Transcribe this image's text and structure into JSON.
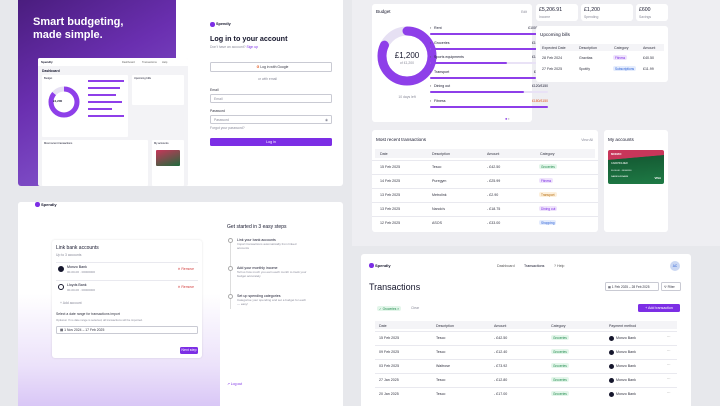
{
  "hero": {
    "line1": "Smart budgeting,",
    "line2": "made simple."
  },
  "brand": "Spendly",
  "login": {
    "title": "Log in to your account",
    "subtitle_prefix": "Don't have an account?",
    "signup": "Sign up",
    "google": "Log in with Google",
    "divider": "or with email",
    "email_label": "Email",
    "email_placeholder": "Email",
    "password_label": "Password",
    "password_placeholder": "Password",
    "forgot": "Forgot your password?",
    "submit": "Log in"
  },
  "mini_dash": {
    "tabs": [
      "Dashboard",
      "Transactions",
      "Help"
    ],
    "title": "Dashboard",
    "budget": "Budget",
    "amount": "£1,200",
    "upcoming": "Upcoming bills",
    "recent": "Most recent transactions",
    "accounts": "My accounts"
  },
  "stats": [
    {
      "value": "£5,206.91",
      "label": "Income"
    },
    {
      "value": "£1,200",
      "label": "Spending"
    },
    {
      "value": "£600",
      "label": "Savings"
    }
  ],
  "budget": {
    "title": "Budget",
    "edit": "Edit",
    "amount": "£1,200",
    "sub": "of £1,200",
    "days": "10 days left",
    "color_track": "#e6e0f3",
    "color_fill": "#8e3fe9",
    "items": [
      {
        "icon": "rent-icon",
        "name": "Rent",
        "value": "£1000/£1000",
        "fill": 1.0,
        "color": "#15162c"
      },
      {
        "icon": "groceries-icon",
        "name": "Groceries",
        "value": "£190/£200",
        "fill": 0.95,
        "color": "#15162c"
      },
      {
        "icon": "sports-icon",
        "name": "Sports equipments",
        "value": "£130/£200",
        "fill": 0.65,
        "color": "#15162c"
      },
      {
        "icon": "transport-icon",
        "name": "Transport",
        "value": "£90/£100",
        "fill": 0.9,
        "color": "#15162c"
      },
      {
        "icon": "dining-icon",
        "name": "Dining out",
        "value": "£120/£150",
        "fill": 0.8,
        "color": "#15162c"
      },
      {
        "icon": "fitness-icon",
        "name": "Fitness",
        "value": "£180/£150",
        "fill": 1.0,
        "color": "#e2541b"
      }
    ]
  },
  "bills": {
    "title": "Upcoming bills",
    "headers": [
      "Expected Date",
      "Description",
      "Category",
      "Amount"
    ],
    "rows": [
      {
        "date": "28 Feb 2024",
        "desc": "Gravitas",
        "cat": "Fitness",
        "cls": "pu",
        "amount": "£40.50"
      },
      {
        "date": "27 Feb 2025",
        "desc": "Spotify",
        "cat": "Subscriptions",
        "cls": "bl",
        "amount": "£11.99"
      }
    ]
  },
  "recent": {
    "title": "Most recent transactions",
    "view_all": "View All",
    "headers": [
      "Date",
      "Description",
      "Amount",
      "Category"
    ],
    "rows": [
      {
        "date": "15 Feb 2025",
        "desc": "Tesco",
        "amount": "- £42.50",
        "cat": "Groceries",
        "cls": "g"
      },
      {
        "date": "14 Feb 2025",
        "desc": "Puregym",
        "amount": "- £25.99",
        "cat": "Fitness",
        "cls": "pu"
      },
      {
        "date": "13 Feb 2025",
        "desc": "Metrolink",
        "amount": "- £2.90",
        "cat": "Transport",
        "cls": "am"
      },
      {
        "date": "13 Feb 2025",
        "desc": "Nando's",
        "amount": "- £18.75",
        "cat": "Dining out",
        "cls": "pu"
      },
      {
        "date": "12 Feb 2025",
        "desc": "ASOS",
        "amount": "- £33.00",
        "cat": "Shopping",
        "cls": "bl"
      }
    ]
  },
  "accounts": {
    "title": "My accounts",
    "bank": "MONZO",
    "name": "CARDHOLDER",
    "numbers": "00-00-00 · 00000000",
    "holder": "NAMESURNAME",
    "network": "VISA"
  },
  "link": {
    "title": "Link bank accounts",
    "sub": "Up to 3 accounts",
    "banks": [
      {
        "name": "Monzo Bank",
        "num": "00-00-00 · 00000000",
        "remove": "Remove"
      },
      {
        "name": "Lloyds Bank",
        "num": "00-00-00 · 00000000",
        "remove": "Remove"
      }
    ],
    "add": "+ Add account",
    "range_label": "Select a date range for transactions import",
    "range_help": "Optional. If no date range is selected, all transactions will be imported.",
    "range_value": "1 Nov 2024 – 17 Feb 2025",
    "next": "Next step"
  },
  "steps": {
    "title": "Get started in 3 easy steps",
    "items": [
      {
        "title": "Link your bank accounts",
        "desc": "Import transactions automatically from linked accounts"
      },
      {
        "title": "Add your monthly income",
        "desc": "Tell us how much you earn each month to track your budget accurately"
      },
      {
        "title": "Set up spending categories",
        "desc": "Categorise your spending and set a budget for each — easy!"
      }
    ],
    "logout": "Log out"
  },
  "tx_page": {
    "nav": [
      "Dashboard",
      "Transactions",
      "Help"
    ],
    "avatar": "AC",
    "title": "Transactions",
    "range": "1 Feb 2025 – 28 Feb 2025",
    "filter": "Filter",
    "chip": "Groceries",
    "clear": "Clear",
    "add": "+ Add transaction",
    "headers": [
      "Date",
      "Description",
      "Amount",
      "Category",
      "Payment method"
    ],
    "rows": [
      {
        "date": "15 Feb 2025",
        "desc": "Tesco",
        "amount": "- £42.50",
        "cat": "Groceries",
        "pay": "Monzo Bank"
      },
      {
        "date": "09 Feb 2025",
        "desc": "Tesco",
        "amount": "- £12.40",
        "cat": "Groceries",
        "pay": "Monzo Bank"
      },
      {
        "date": "03 Feb 2025",
        "desc": "Waitrose",
        "amount": "- £73.92",
        "cat": "Groceries",
        "pay": "Monzo Bank"
      },
      {
        "date": "27 Jan 2025",
        "desc": "Tesco",
        "amount": "- £12.80",
        "cat": "Groceries",
        "pay": "Monzo Bank"
      },
      {
        "date": "20 Jan 2025",
        "desc": "Tesco",
        "amount": "- £17.00",
        "cat": "Groceries",
        "pay": "Monzo Bank"
      }
    ]
  }
}
